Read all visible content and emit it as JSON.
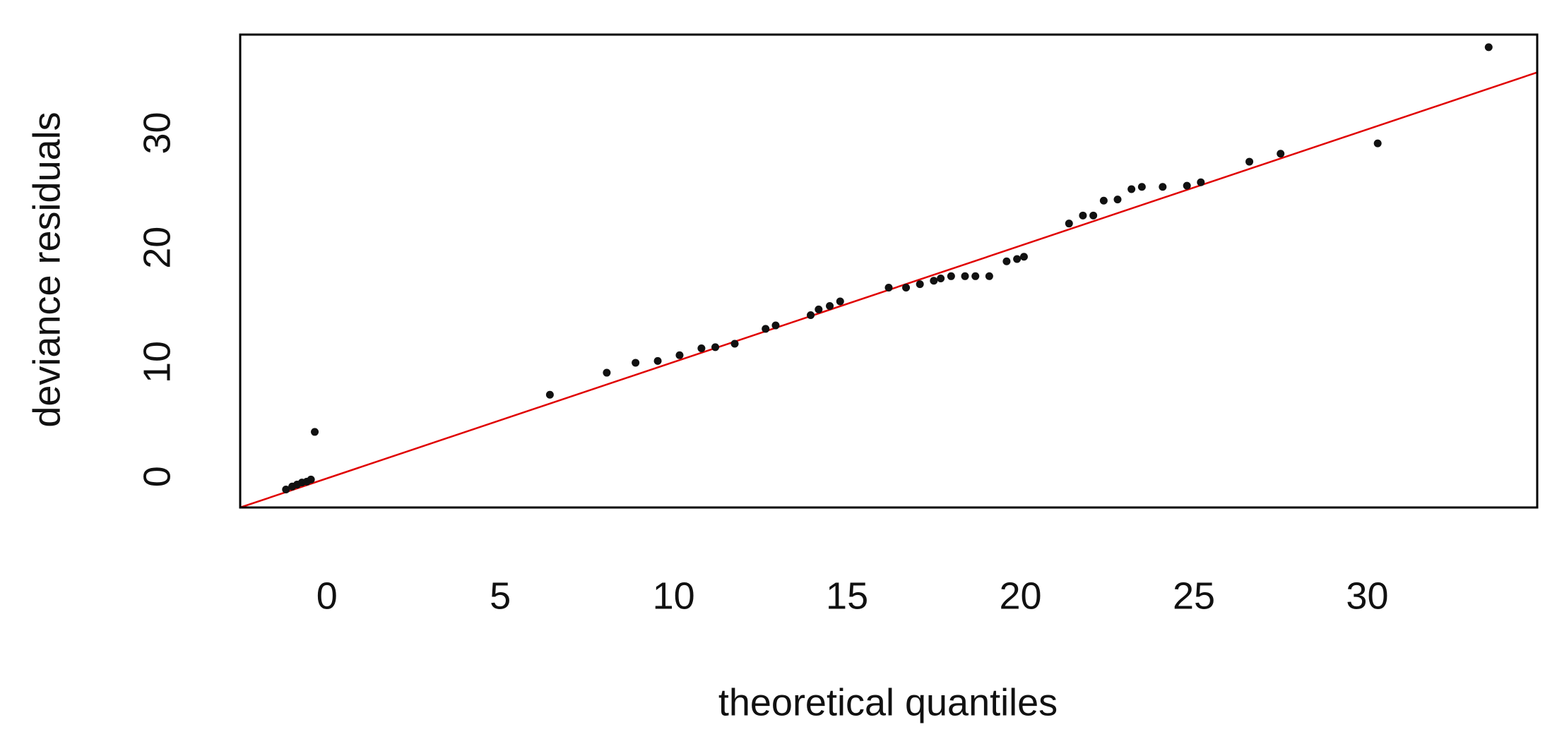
{
  "chart_data": {
    "type": "scatter",
    "x_label": "theoretical quantiles",
    "y_label": "deviance residuals",
    "xlim": [
      -2.5,
      34.9
    ],
    "ylim": [
      -2.7,
      38.6
    ],
    "xticks": [
      0,
      5,
      10,
      15,
      20,
      25,
      30
    ],
    "yticks": [
      0,
      10,
      20,
      30
    ],
    "color": "#111111",
    "x": [
      -1.18,
      -1.0,
      -0.86,
      -0.72,
      -0.58,
      -0.46,
      -0.35,
      6.43,
      8.07,
      8.9,
      9.54,
      10.17,
      10.8,
      11.2,
      11.76,
      12.65,
      12.94,
      13.95,
      14.18,
      14.5,
      14.8,
      16.2,
      16.7,
      17.1,
      17.5,
      17.7,
      18.0,
      18.4,
      18.7,
      19.1,
      19.6,
      19.9,
      20.1,
      21.4,
      21.8,
      22.1,
      22.4,
      22.8,
      23.2,
      23.5,
      24.1,
      24.8,
      25.2,
      26.6,
      27.5,
      30.3,
      33.5
    ],
    "values": [
      -1.13,
      -0.87,
      -0.7,
      -0.52,
      -0.44,
      -0.26,
      3.9,
      7.15,
      9.07,
      9.94,
      10.1,
      10.6,
      11.2,
      11.3,
      11.6,
      12.9,
      13.2,
      14.1,
      14.6,
      14.9,
      15.3,
      16.5,
      16.5,
      16.8,
      17.1,
      17.3,
      17.5,
      17.5,
      17.5,
      17.5,
      18.8,
      19.0,
      19.2,
      22.1,
      22.8,
      22.8,
      24.1,
      24.2,
      25.1,
      25.3,
      25.3,
      25.4,
      25.7,
      27.5,
      28.2,
      29.1,
      37.5
    ],
    "reference_line": {
      "color": "#e00000",
      "x": [
        -2.5,
        34.9
      ],
      "y": [
        -2.7,
        35.3
      ]
    }
  }
}
